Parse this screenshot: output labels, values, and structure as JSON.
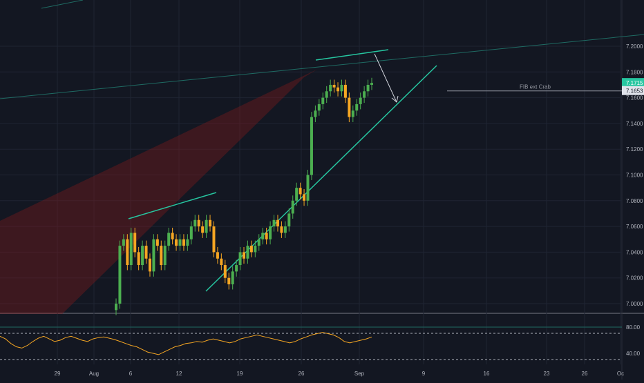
{
  "colors": {
    "background": "#131722",
    "grid": "#1f2433",
    "up": "#26a69a",
    "up_candle": "#4caf50",
    "down": "#f5a623",
    "trendline": "#26c6a0",
    "channel": "#1f6b63",
    "wedge": "#8b1a1a",
    "rsi": "#f5a623",
    "axis_text": "#b2b5be",
    "current_price_bg": "#26c6a0",
    "fib_price_bg": "#e0e3eb"
  },
  "chart_data": [
    {
      "type": "candlestick",
      "title": "",
      "xlabel": "",
      "ylabel": "",
      "ylim": [
        6.99,
        7.21
      ],
      "y_ticks": [
        "7.2000",
        "7.1800",
        "7.1600",
        "7.1400",
        "7.1200",
        "7.1000",
        "7.0800",
        "7.0600",
        "7.0400",
        "7.0200",
        "7.0000"
      ],
      "y_tick_values": [
        7.2,
        7.18,
        7.16,
        7.14,
        7.12,
        7.1,
        7.08,
        7.06,
        7.04,
        7.02,
        7.0
      ],
      "x_ticks": [
        "29",
        "Aug",
        "6",
        "12",
        "19",
        "26",
        "Sep",
        "9",
        "16",
        "23",
        "26",
        "Oc"
      ],
      "price_labels": [
        {
          "text": "7.1715",
          "value": 7.1715,
          "style": "current"
        },
        {
          "text": "7.1653",
          "value": 7.1653,
          "style": "fib"
        }
      ],
      "annotations": [
        {
          "text": "FIB ext Crab",
          "value": 7.1653
        }
      ],
      "candles_close": [
        7.0,
        7.045,
        7.05,
        7.03,
        7.055,
        7.04,
        7.03,
        7.045,
        7.035,
        7.025,
        7.05,
        7.045,
        7.03,
        7.045,
        7.055,
        7.05,
        7.045,
        7.05,
        7.045,
        7.05,
        7.06,
        7.065,
        7.06,
        7.055,
        7.065,
        7.06,
        7.04,
        7.035,
        7.03,
        7.02,
        7.015,
        7.025,
        7.03,
        7.04,
        7.035,
        7.045,
        7.04,
        7.045,
        7.05,
        7.055,
        7.05,
        7.06,
        7.065,
        7.06,
        7.055,
        7.06,
        7.07,
        7.08,
        7.09,
        7.085,
        7.08,
        7.1,
        7.145,
        7.15,
        7.155,
        7.16,
        7.165,
        7.17,
        7.168,
        7.165,
        7.17,
        7.16,
        7.145,
        7.15,
        7.155,
        7.16,
        7.165,
        7.17,
        7.1715
      ]
    },
    {
      "type": "line",
      "title": "",
      "ylim": [
        30,
        90
      ],
      "y_ticks": [
        "80.00",
        "40.00"
      ],
      "y_tick_values": [
        80,
        40
      ],
      "series": [
        {
          "values": [
            66,
            62,
            55,
            50,
            48,
            52,
            58,
            63,
            66,
            62,
            58,
            60,
            64,
            66,
            63,
            60,
            58,
            62,
            64,
            65,
            63,
            61,
            58,
            55,
            52,
            50,
            46,
            42,
            40,
            38,
            42,
            46,
            50,
            52,
            55,
            56,
            58,
            57,
            60,
            62,
            60,
            58,
            56,
            58,
            62,
            64,
            66,
            68,
            66,
            64,
            62,
            60,
            58,
            56,
            58,
            62,
            65,
            68,
            70,
            72,
            70,
            68,
            64,
            58,
            56,
            58,
            60,
            62,
            65
          ]
        }
      ]
    }
  ]
}
